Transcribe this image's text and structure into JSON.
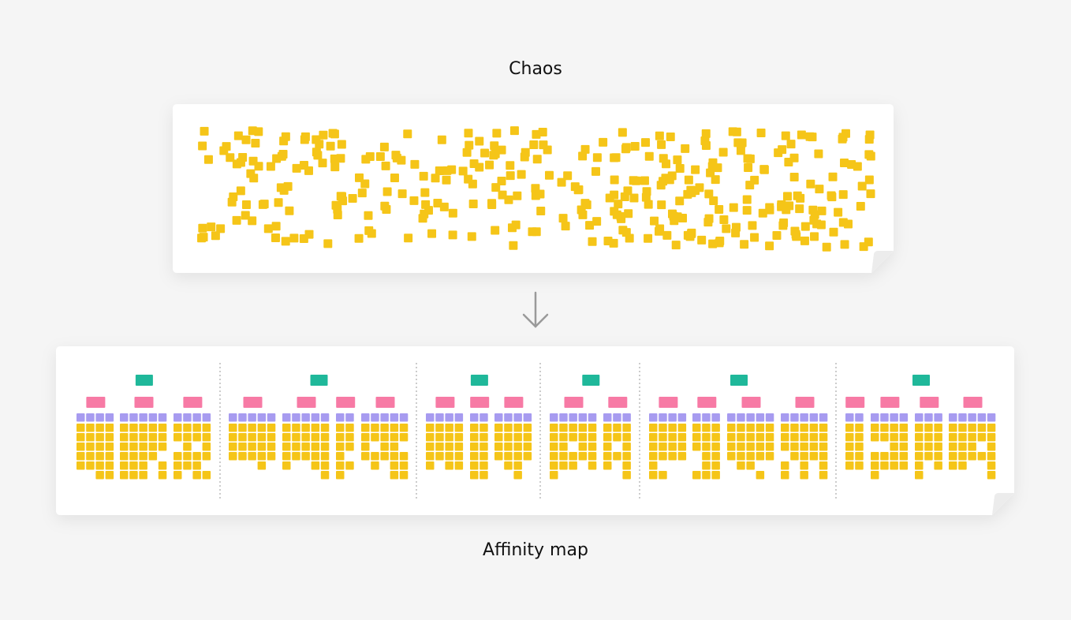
{
  "top_label": "Chaos",
  "bottom_label": "Affinity map"
}
